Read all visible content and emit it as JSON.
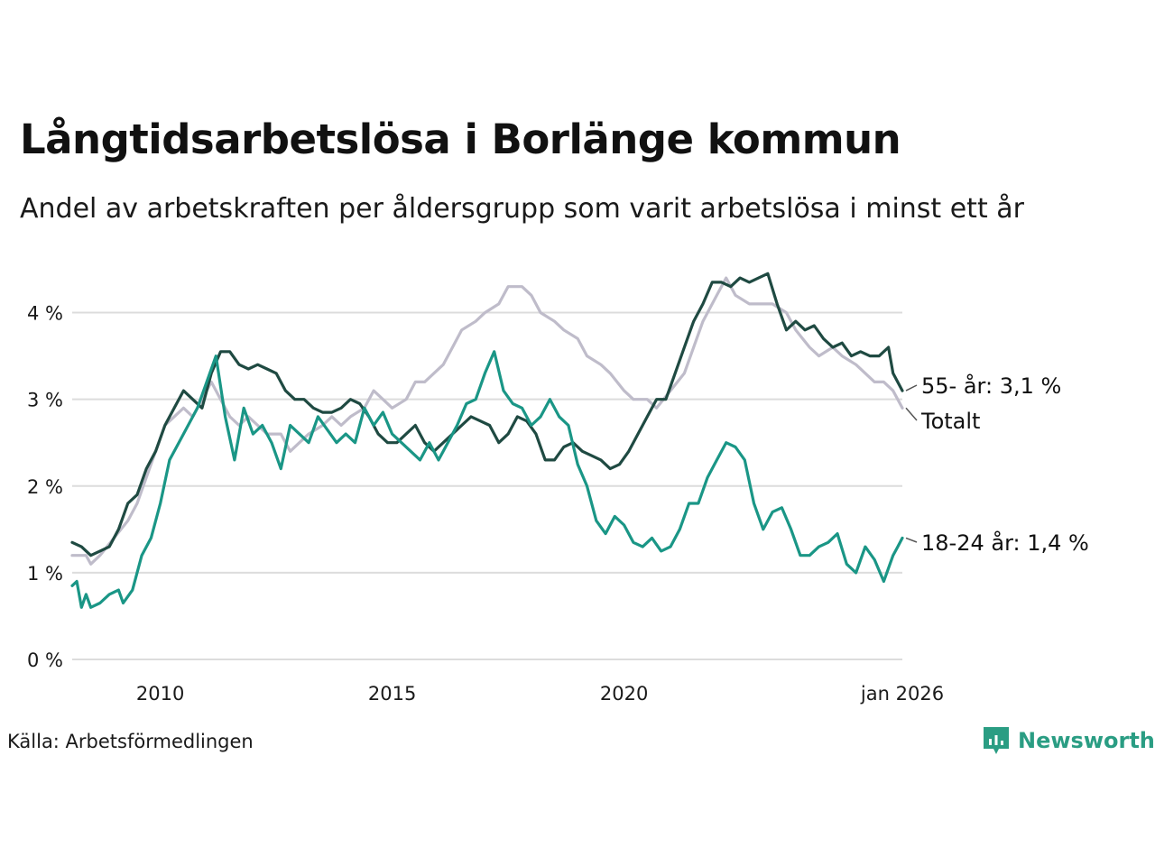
{
  "title": "Långtidsarbetslösa i Borlänge kommun",
  "subtitle": "Andel av arbetskraften per åldersgrupp som varit arbetslösa i minst ett år",
  "source": "Källa: Arbetsförmedlingen",
  "brand": "Newsworthy",
  "colors": {
    "total": "#bfbcca",
    "age55": "#1f4a42",
    "age1824": "#1a9686",
    "grid": "#dcdcdc",
    "brand": "#2a9d83"
  },
  "chart_data": {
    "type": "line",
    "title": "Långtidsarbetslösa i Borlänge kommun",
    "xlabel": "",
    "ylabel": "",
    "xlim": [
      2008.1,
      2026.0
    ],
    "ylim": [
      0,
      4.5
    ],
    "yticks": [
      0,
      1,
      2,
      3,
      4
    ],
    "ytick_labels": [
      "0 %",
      "1 %",
      "2 %",
      "3 %",
      "4 %"
    ],
    "xticks": [
      2010,
      2015,
      2020,
      2026.0
    ],
    "xtick_labels": [
      "2010",
      "2015",
      "2020",
      "jan 2026"
    ],
    "grid": true,
    "series": [
      {
        "name": "Totalt",
        "end_label": "Totalt",
        "color_key": "total",
        "points": [
          [
            2008.1,
            1.2
          ],
          [
            2008.4,
            1.2
          ],
          [
            2008.5,
            1.1
          ],
          [
            2008.7,
            1.2
          ],
          [
            2009.0,
            1.4
          ],
          [
            2009.3,
            1.6
          ],
          [
            2009.5,
            1.8
          ],
          [
            2009.7,
            2.1
          ],
          [
            2009.9,
            2.4
          ],
          [
            2010.1,
            2.7
          ],
          [
            2010.3,
            2.8
          ],
          [
            2010.5,
            2.9
          ],
          [
            2010.7,
            2.8
          ],
          [
            2010.9,
            3.0
          ],
          [
            2011.1,
            3.2
          ],
          [
            2011.3,
            3.0
          ],
          [
            2011.5,
            2.8
          ],
          [
            2011.7,
            2.7
          ],
          [
            2011.9,
            2.8
          ],
          [
            2012.1,
            2.7
          ],
          [
            2012.3,
            2.6
          ],
          [
            2012.6,
            2.6
          ],
          [
            2012.8,
            2.4
          ],
          [
            2013.0,
            2.5
          ],
          [
            2013.2,
            2.6
          ],
          [
            2013.5,
            2.7
          ],
          [
            2013.7,
            2.8
          ],
          [
            2013.9,
            2.7
          ],
          [
            2014.1,
            2.8
          ],
          [
            2014.4,
            2.9
          ],
          [
            2014.6,
            3.1
          ],
          [
            2014.8,
            3.0
          ],
          [
            2015.0,
            2.9
          ],
          [
            2015.3,
            3.0
          ],
          [
            2015.5,
            3.2
          ],
          [
            2015.7,
            3.2
          ],
          [
            2015.9,
            3.3
          ],
          [
            2016.1,
            3.4
          ],
          [
            2016.3,
            3.6
          ],
          [
            2016.5,
            3.8
          ],
          [
            2016.8,
            3.9
          ],
          [
            2017.0,
            4.0
          ],
          [
            2017.3,
            4.1
          ],
          [
            2017.5,
            4.3
          ],
          [
            2017.8,
            4.3
          ],
          [
            2018.0,
            4.2
          ],
          [
            2018.2,
            4.0
          ],
          [
            2018.5,
            3.9
          ],
          [
            2018.7,
            3.8
          ],
          [
            2019.0,
            3.7
          ],
          [
            2019.2,
            3.5
          ],
          [
            2019.5,
            3.4
          ],
          [
            2019.7,
            3.3
          ],
          [
            2020.0,
            3.1
          ],
          [
            2020.2,
            3.0
          ],
          [
            2020.5,
            3.0
          ],
          [
            2020.7,
            2.9
          ],
          [
            2021.0,
            3.1
          ],
          [
            2021.3,
            3.3
          ],
          [
            2021.5,
            3.6
          ],
          [
            2021.7,
            3.9
          ],
          [
            2022.0,
            4.2
          ],
          [
            2022.2,
            4.4
          ],
          [
            2022.4,
            4.2
          ],
          [
            2022.7,
            4.1
          ],
          [
            2023.0,
            4.1
          ],
          [
            2023.2,
            4.1
          ],
          [
            2023.5,
            4.0
          ],
          [
            2023.7,
            3.8
          ],
          [
            2024.0,
            3.6
          ],
          [
            2024.2,
            3.5
          ],
          [
            2024.5,
            3.6
          ],
          [
            2024.7,
            3.5
          ],
          [
            2025.0,
            3.4
          ],
          [
            2025.2,
            3.3
          ],
          [
            2025.4,
            3.2
          ],
          [
            2025.6,
            3.2
          ],
          [
            2025.8,
            3.1
          ],
          [
            2026.0,
            2.9
          ]
        ]
      },
      {
        "name": "55- år",
        "end_label": "55- år: 3,1 %",
        "color_key": "age55",
        "points": [
          [
            2008.1,
            1.35
          ],
          [
            2008.3,
            1.3
          ],
          [
            2008.5,
            1.2
          ],
          [
            2008.7,
            1.25
          ],
          [
            2008.9,
            1.3
          ],
          [
            2009.1,
            1.5
          ],
          [
            2009.3,
            1.8
          ],
          [
            2009.5,
            1.9
          ],
          [
            2009.7,
            2.2
          ],
          [
            2009.9,
            2.4
          ],
          [
            2010.1,
            2.7
          ],
          [
            2010.3,
            2.9
          ],
          [
            2010.5,
            3.1
          ],
          [
            2010.7,
            3.0
          ],
          [
            2010.9,
            2.9
          ],
          [
            2011.1,
            3.3
          ],
          [
            2011.3,
            3.55
          ],
          [
            2011.5,
            3.55
          ],
          [
            2011.7,
            3.4
          ],
          [
            2011.9,
            3.35
          ],
          [
            2012.1,
            3.4
          ],
          [
            2012.3,
            3.35
          ],
          [
            2012.5,
            3.3
          ],
          [
            2012.7,
            3.1
          ],
          [
            2012.9,
            3.0
          ],
          [
            2013.1,
            3.0
          ],
          [
            2013.3,
            2.9
          ],
          [
            2013.5,
            2.85
          ],
          [
            2013.7,
            2.85
          ],
          [
            2013.9,
            2.9
          ],
          [
            2014.1,
            3.0
          ],
          [
            2014.3,
            2.95
          ],
          [
            2014.5,
            2.8
          ],
          [
            2014.7,
            2.6
          ],
          [
            2014.9,
            2.5
          ],
          [
            2015.1,
            2.5
          ],
          [
            2015.3,
            2.6
          ],
          [
            2015.5,
            2.7
          ],
          [
            2015.7,
            2.5
          ],
          [
            2015.9,
            2.4
          ],
          [
            2016.1,
            2.5
          ],
          [
            2016.3,
            2.6
          ],
          [
            2016.5,
            2.7
          ],
          [
            2016.7,
            2.8
          ],
          [
            2016.9,
            2.75
          ],
          [
            2017.1,
            2.7
          ],
          [
            2017.3,
            2.5
          ],
          [
            2017.5,
            2.6
          ],
          [
            2017.7,
            2.8
          ],
          [
            2017.9,
            2.75
          ],
          [
            2018.1,
            2.6
          ],
          [
            2018.3,
            2.3
          ],
          [
            2018.5,
            2.3
          ],
          [
            2018.7,
            2.45
          ],
          [
            2018.9,
            2.5
          ],
          [
            2019.1,
            2.4
          ],
          [
            2019.3,
            2.35
          ],
          [
            2019.5,
            2.3
          ],
          [
            2019.7,
            2.2
          ],
          [
            2019.9,
            2.25
          ],
          [
            2020.1,
            2.4
          ],
          [
            2020.3,
            2.6
          ],
          [
            2020.5,
            2.8
          ],
          [
            2020.7,
            3.0
          ],
          [
            2020.9,
            3.0
          ],
          [
            2021.1,
            3.3
          ],
          [
            2021.3,
            3.6
          ],
          [
            2021.5,
            3.9
          ],
          [
            2021.7,
            4.1
          ],
          [
            2021.9,
            4.35
          ],
          [
            2022.1,
            4.35
          ],
          [
            2022.3,
            4.3
          ],
          [
            2022.5,
            4.4
          ],
          [
            2022.7,
            4.35
          ],
          [
            2022.9,
            4.4
          ],
          [
            2023.1,
            4.45
          ],
          [
            2023.3,
            4.1
          ],
          [
            2023.5,
            3.8
          ],
          [
            2023.7,
            3.9
          ],
          [
            2023.9,
            3.8
          ],
          [
            2024.1,
            3.85
          ],
          [
            2024.3,
            3.7
          ],
          [
            2024.5,
            3.6
          ],
          [
            2024.7,
            3.65
          ],
          [
            2024.9,
            3.5
          ],
          [
            2025.1,
            3.55
          ],
          [
            2025.3,
            3.5
          ],
          [
            2025.5,
            3.5
          ],
          [
            2025.7,
            3.6
          ],
          [
            2025.8,
            3.3
          ],
          [
            2026.0,
            3.1
          ]
        ]
      },
      {
        "name": "18-24 år",
        "end_label": "18-24 år: 1,4 %",
        "color_key": "age1824",
        "points": [
          [
            2008.1,
            0.85
          ],
          [
            2008.2,
            0.9
          ],
          [
            2008.3,
            0.6
          ],
          [
            2008.4,
            0.75
          ],
          [
            2008.5,
            0.6
          ],
          [
            2008.7,
            0.65
          ],
          [
            2008.9,
            0.75
          ],
          [
            2009.1,
            0.8
          ],
          [
            2009.2,
            0.65
          ],
          [
            2009.4,
            0.8
          ],
          [
            2009.6,
            1.2
          ],
          [
            2009.8,
            1.4
          ],
          [
            2010.0,
            1.8
          ],
          [
            2010.2,
            2.3
          ],
          [
            2010.4,
            2.5
          ],
          [
            2010.6,
            2.7
          ],
          [
            2010.8,
            2.9
          ],
          [
            2011.0,
            3.2
          ],
          [
            2011.2,
            3.5
          ],
          [
            2011.4,
            2.8
          ],
          [
            2011.6,
            2.3
          ],
          [
            2011.8,
            2.9
          ],
          [
            2012.0,
            2.6
          ],
          [
            2012.2,
            2.7
          ],
          [
            2012.4,
            2.5
          ],
          [
            2012.6,
            2.2
          ],
          [
            2012.8,
            2.7
          ],
          [
            2013.0,
            2.6
          ],
          [
            2013.2,
            2.5
          ],
          [
            2013.4,
            2.8
          ],
          [
            2013.6,
            2.65
          ],
          [
            2013.8,
            2.5
          ],
          [
            2014.0,
            2.6
          ],
          [
            2014.2,
            2.5
          ],
          [
            2014.4,
            2.9
          ],
          [
            2014.6,
            2.7
          ],
          [
            2014.8,
            2.85
          ],
          [
            2015.0,
            2.6
          ],
          [
            2015.2,
            2.5
          ],
          [
            2015.4,
            2.4
          ],
          [
            2015.6,
            2.3
          ],
          [
            2015.8,
            2.5
          ],
          [
            2016.0,
            2.3
          ],
          [
            2016.2,
            2.5
          ],
          [
            2016.4,
            2.7
          ],
          [
            2016.6,
            2.95
          ],
          [
            2016.8,
            3.0
          ],
          [
            2017.0,
            3.3
          ],
          [
            2017.2,
            3.55
          ],
          [
            2017.4,
            3.1
          ],
          [
            2017.6,
            2.95
          ],
          [
            2017.8,
            2.9
          ],
          [
            2018.0,
            2.7
          ],
          [
            2018.2,
            2.8
          ],
          [
            2018.4,
            3.0
          ],
          [
            2018.6,
            2.8
          ],
          [
            2018.8,
            2.7
          ],
          [
            2019.0,
            2.25
          ],
          [
            2019.2,
            2.0
          ],
          [
            2019.4,
            1.6
          ],
          [
            2019.6,
            1.45
          ],
          [
            2019.8,
            1.65
          ],
          [
            2020.0,
            1.55
          ],
          [
            2020.2,
            1.35
          ],
          [
            2020.4,
            1.3
          ],
          [
            2020.6,
            1.4
          ],
          [
            2020.8,
            1.25
          ],
          [
            2021.0,
            1.3
          ],
          [
            2021.2,
            1.5
          ],
          [
            2021.4,
            1.8
          ],
          [
            2021.6,
            1.8
          ],
          [
            2021.8,
            2.1
          ],
          [
            2022.0,
            2.3
          ],
          [
            2022.2,
            2.5
          ],
          [
            2022.4,
            2.45
          ],
          [
            2022.6,
            2.3
          ],
          [
            2022.8,
            1.8
          ],
          [
            2023.0,
            1.5
          ],
          [
            2023.2,
            1.7
          ],
          [
            2023.4,
            1.75
          ],
          [
            2023.6,
            1.5
          ],
          [
            2023.8,
            1.2
          ],
          [
            2024.0,
            1.2
          ],
          [
            2024.2,
            1.3
          ],
          [
            2024.4,
            1.35
          ],
          [
            2024.6,
            1.45
          ],
          [
            2024.8,
            1.1
          ],
          [
            2025.0,
            1.0
          ],
          [
            2025.2,
            1.3
          ],
          [
            2025.4,
            1.15
          ],
          [
            2025.6,
            0.9
          ],
          [
            2025.8,
            1.2
          ],
          [
            2025.9,
            1.3
          ],
          [
            2026.0,
            1.4
          ]
        ]
      }
    ]
  }
}
